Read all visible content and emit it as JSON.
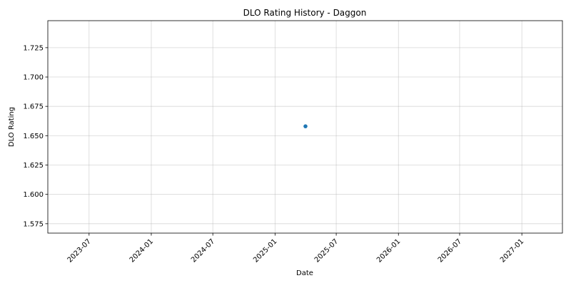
{
  "chart_data": {
    "type": "scatter",
    "title": "DLO Rating History - Daggon",
    "xlabel": "Date",
    "ylabel": "DLO Rating",
    "x_type": "date",
    "xlim": [
      "2023-03-01",
      "2027-05-01"
    ],
    "ylim": [
      1.567,
      1.748
    ],
    "x_ticks": [
      "2023-07",
      "2024-01",
      "2024-07",
      "2025-01",
      "2025-07",
      "2026-01",
      "2026-07",
      "2027-01"
    ],
    "y_ticks": [
      "1.575",
      "1.600",
      "1.625",
      "1.650",
      "1.675",
      "1.700",
      "1.725"
    ],
    "grid": true,
    "series": [
      {
        "color": "#1f77b4",
        "points": [
          {
            "x": "2025-04-01",
            "y": 1.658
          }
        ]
      }
    ]
  }
}
